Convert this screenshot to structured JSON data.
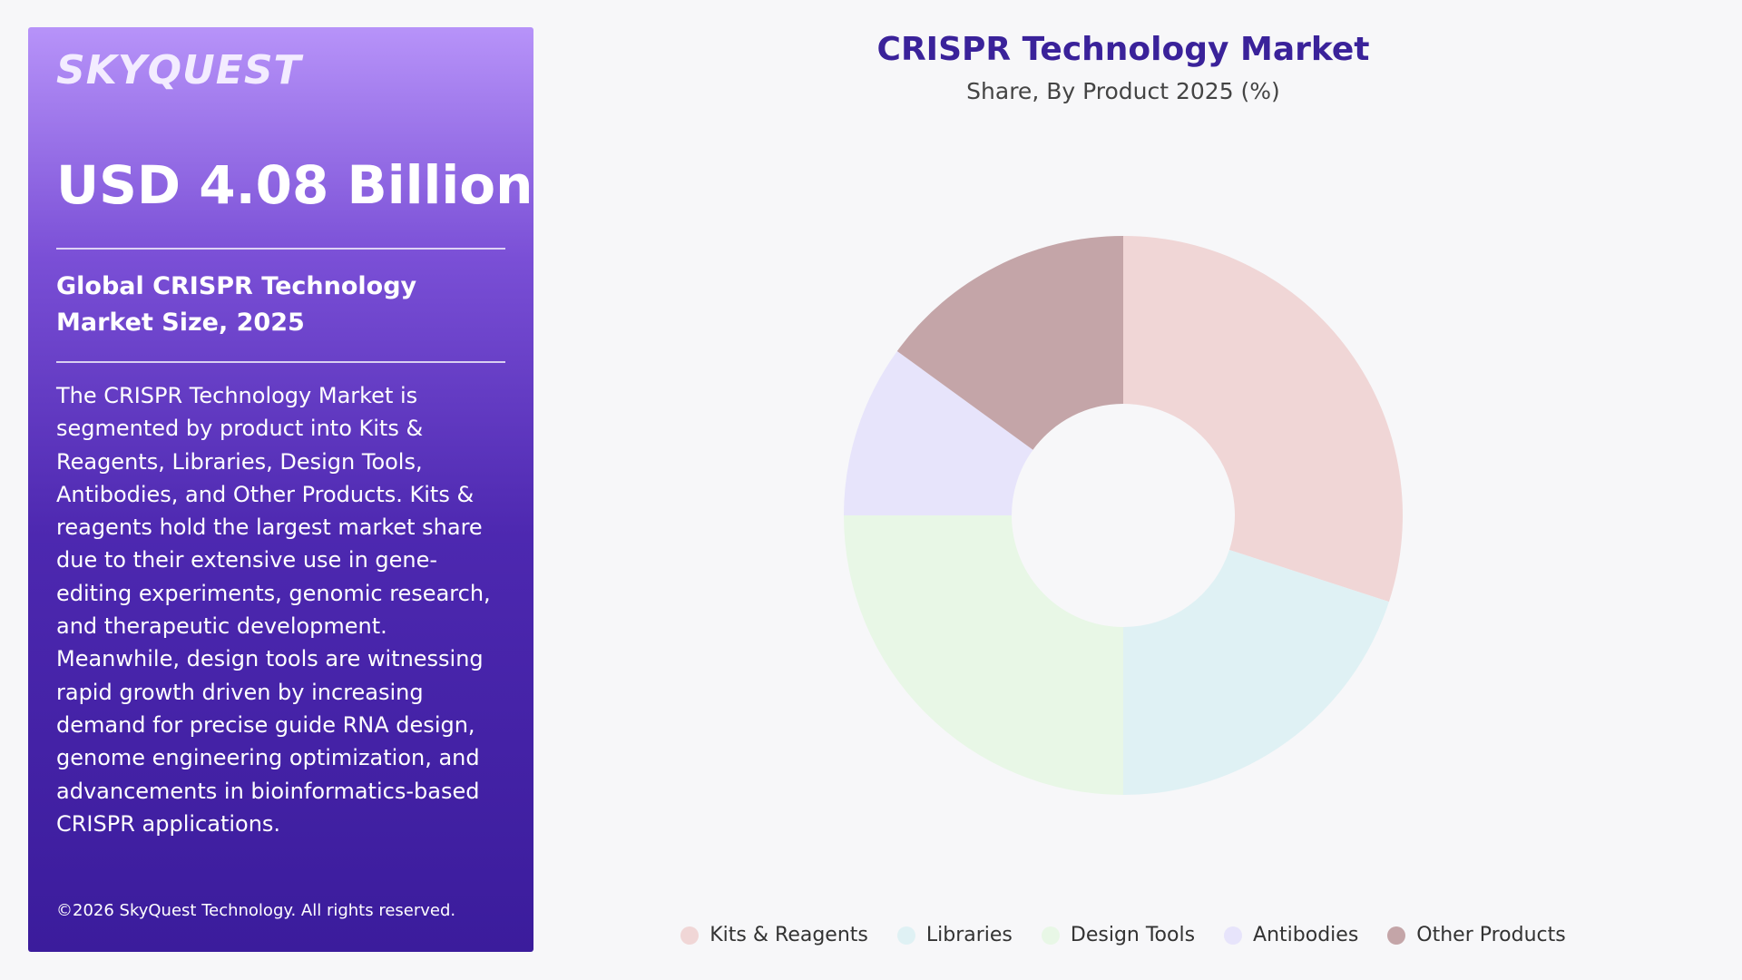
{
  "panel": {
    "logo": "SKYQUEST",
    "headline": "USD 4.08 Billion",
    "subtitle": "Global CRISPR Technology Market Size, 2025",
    "description": "The CRISPR Technology Market is segmented by product into Kits & Reagents, Libraries, Design Tools, Antibodies, and Other Products. Kits & reagents hold the largest market share due to their extensive use in gene-editing experiments, genomic research, and therapeutic development. Meanwhile, design tools are witnessing rapid growth driven by increasing demand for precise guide RNA design, genome engineering optimization, and advancements in bioinformatics-based CRISPR applications.",
    "copyright": "©2026 SkyQuest Technology. All rights reserved."
  },
  "chart_data": {
    "type": "donut",
    "title": "CRISPR Technology Market",
    "subtitle": "Share, By Product 2025 (%)",
    "categories": [
      "Kits & Reagents",
      "Libraries",
      "Design Tools",
      "Antibodies",
      "Other Products"
    ],
    "values": [
      30,
      20,
      25,
      10,
      15
    ],
    "colors": [
      "#f0d6d6",
      "#dff1f4",
      "#e8f7e6",
      "#e7e4fb",
      "#c4a5a8"
    ]
  }
}
